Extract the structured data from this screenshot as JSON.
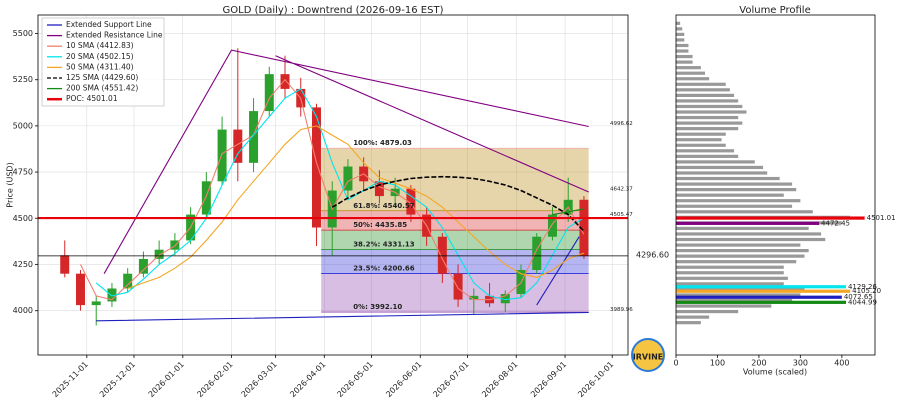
{
  "chart_data": [
    {
      "type": "candlestick",
      "title": "GOLD (Daily) : Downtrend (2026-09-16 EST)",
      "ylabel": "Price (USD)",
      "grid": true,
      "xlim": [
        "2025-10-01",
        "2026-10-11"
      ],
      "ylim": [
        3760,
        5600
      ],
      "yticks": [
        4000,
        4250,
        4500,
        4750,
        5000,
        5250,
        5500
      ],
      "xticks": [
        "2025-11-01",
        "2025-12-01",
        "2026-01-01",
        "2026-02-01",
        "2026-03-01",
        "2026-04-01",
        "2026-05-01",
        "2026-06-01",
        "2026-07-01",
        "2026-08-01",
        "2026-09-01",
        "2026-10-01"
      ],
      "up_color": "#2ca02c",
      "down_color": "#d62728",
      "x": [
        "2025-10-18",
        "2025-10-28",
        "2025-11-07",
        "2025-11-17",
        "2025-11-27",
        "2025-12-07",
        "2025-12-17",
        "2025-12-27",
        "2026-01-06",
        "2026-01-16",
        "2026-01-26",
        "2026-02-05",
        "2026-02-15",
        "2026-02-25",
        "2026-03-07",
        "2026-03-17",
        "2026-03-27",
        "2026-04-06",
        "2026-04-16",
        "2026-04-26",
        "2026-05-06",
        "2026-05-16",
        "2026-05-26",
        "2026-06-05",
        "2026-06-15",
        "2026-06-25",
        "2026-07-05",
        "2026-07-15",
        "2026-07-25",
        "2026-08-04",
        "2026-08-14",
        "2026-08-24",
        "2026-09-03",
        "2026-09-13"
      ],
      "open": [
        4300,
        4200,
        4030,
        4050,
        4120,
        4200,
        4280,
        4330,
        4380,
        4520,
        4700,
        4980,
        4800,
        5080,
        5280,
        5200,
        5100,
        4450,
        4650,
        4780,
        4700,
        4620,
        4660,
        4520,
        4400,
        4200,
        4060,
        4080,
        4040,
        4090,
        4220,
        4400,
        4520,
        4600
      ],
      "high": [
        4380,
        4220,
        4080,
        4150,
        4230,
        4320,
        4380,
        4420,
        4560,
        4750,
        5050,
        5420,
        5150,
        5320,
        5380,
        5260,
        5120,
        4700,
        4820,
        4830,
        4760,
        4720,
        4680,
        4560,
        4420,
        4250,
        4120,
        4150,
        4110,
        4250,
        4420,
        4560,
        4720,
        4620
      ],
      "low": [
        4180,
        4000,
        3920,
        4020,
        4100,
        4180,
        4250,
        4300,
        4360,
        4500,
        4680,
        4700,
        4750,
        5050,
        5150,
        5050,
        4350,
        4300,
        4600,
        4650,
        4580,
        4560,
        4480,
        4350,
        4150,
        4020,
        3980,
        4020,
        3990,
        4070,
        4200,
        4380,
        4480,
        4280
      ],
      "close": [
        4200,
        4030,
        4050,
        4120,
        4200,
        4280,
        4330,
        4380,
        4520,
        4700,
        4980,
        4800,
        5080,
        5280,
        5200,
        5100,
        4450,
        4650,
        4780,
        4700,
        4620,
        4660,
        4520,
        4400,
        4200,
        4060,
        4080,
        4040,
        4090,
        4220,
        4400,
        4520,
        4600,
        4297
      ],
      "series": [
        {
          "name": "Extended Support Line",
          "color": "#1f1fbf",
          "x": [
            "2025-11-07",
            "2026-09-16",
            "2026-09-16",
            "2026-08-14",
            "2026-09-10"
          ],
          "values": [
            3945,
            3989.96,
            null,
            4030,
            4400
          ]
        },
        {
          "name": "Extended Resistance Line",
          "color": "#800080",
          "x": [
            "2025-11-12",
            "2026-02-01",
            "2026-09-16",
            "2026-09-16",
            "2026-03-01",
            "2026-09-16"
          ],
          "values": [
            4200,
            5410,
            4996.62,
            null,
            5380,
            4642.37
          ]
        },
        {
          "name": "10 SMA (4412.83)",
          "color": "#f08070",
          "values": [
            null,
            4250,
            4080,
            4060,
            4140,
            4220,
            4300,
            4350,
            4450,
            4620,
            4850,
            4900,
            4950,
            5150,
            5250,
            5150,
            4800,
            4550,
            4700,
            4740,
            4670,
            4640,
            4580,
            4460,
            4280,
            4120,
            4060,
            4060,
            4080,
            4150,
            4330,
            4470,
            4560,
            4412.83
          ]
        },
        {
          "name": "20 SMA (4502.15)",
          "color": "#00e5ee",
          "values": [
            null,
            null,
            4150,
            4080,
            4100,
            4170,
            4250,
            4310,
            4380,
            4500,
            4680,
            4850,
            4950,
            5050,
            5150,
            5200,
            5050,
            4800,
            4600,
            4650,
            4700,
            4680,
            4620,
            4560,
            4450,
            4300,
            4150,
            4080,
            4060,
            4070,
            4150,
            4300,
            4450,
            4502.15
          ]
        },
        {
          "name": "50 SMA (4311.40)",
          "color": "#f5a623",
          "values": [
            null,
            null,
            null,
            null,
            4120,
            4150,
            4180,
            4230,
            4290,
            4380,
            4480,
            4600,
            4700,
            4800,
            4900,
            4980,
            5000,
            4950,
            4900,
            4800,
            4720,
            4690,
            4660,
            4620,
            4560,
            4480,
            4400,
            4320,
            4250,
            4200,
            4180,
            4220,
            4280,
            4311.4
          ]
        },
        {
          "name": "125 SMA (4429.60)",
          "color": "#000000",
          "dash": true,
          "values": [
            null,
            null,
            null,
            null,
            null,
            null,
            null,
            null,
            null,
            null,
            null,
            null,
            null,
            null,
            null,
            null,
            null,
            4560,
            4610,
            4650,
            4680,
            4700,
            4715,
            4722,
            4725,
            4722,
            4715,
            4700,
            4680,
            4650,
            4610,
            4570,
            4520,
            4429.6
          ]
        },
        {
          "name": "200 SMA (4551.42)",
          "color": "#138a13",
          "values": [
            null,
            null,
            null,
            null,
            null,
            null,
            null,
            null,
            null,
            null,
            null,
            null,
            null,
            null,
            null,
            null,
            null,
            null,
            null,
            null,
            null,
            null,
            null,
            null,
            null,
            null,
            null,
            null,
            null,
            null,
            null,
            4520,
            4535,
            4551.42
          ]
        },
        {
          "name": "POC: 4501.01",
          "color": "#e8000b",
          "hline": 4501.01
        }
      ],
      "fib": {
        "start": "2026-03-30",
        "end": "2026-09-16",
        "levels": [
          {
            "value": 3992.1,
            "label": "0%: 3992.10",
            "color": "#8e44ad"
          },
          {
            "value": 4200.66,
            "label": "23.5%: 4200.66",
            "color": "#2b2bd9"
          },
          {
            "value": 4331.13,
            "label": "38.2%: 4331.13",
            "color": "#1a8a1a"
          },
          {
            "value": 4435.85,
            "label": "50%: 4435.85",
            "color": "#d62728"
          },
          {
            "value": 4540.57,
            "label": "61.8%: 4540.57",
            "color": "#b8860b"
          },
          {
            "value": 4879.03,
            "label": "100%: 4879.03",
            "color": "#f4a6a6"
          }
        ]
      },
      "end_labels": [
        {
          "value": 4996.62,
          "color": "#800080"
        },
        {
          "value": 4642.37,
          "color": "#800080"
        },
        {
          "value": 4505.47,
          "color": "#138a13"
        },
        {
          "value": 3989.96,
          "color": "#1f1fbf"
        }
      ],
      "price_line": {
        "value": 4296.6,
        "label": "4296.60"
      },
      "watermark": "IRVINE"
    },
    {
      "type": "barh",
      "title": "Volume Profile",
      "xlabel": "Volume (scaled)",
      "xlim": [
        0,
        480
      ],
      "xticks": [
        0,
        100,
        200,
        300,
        400
      ],
      "color": "#999999",
      "prices": [
        3935,
        3965,
        3995,
        4025,
        4055,
        4085,
        4115,
        4145,
        4175,
        4205,
        4235,
        4265,
        4295,
        4325,
        4355,
        4385,
        4415,
        4445,
        4475,
        4505,
        4535,
        4565,
        4595,
        4625,
        4655,
        4685,
        4715,
        4745,
        4775,
        4805,
        4835,
        4865,
        4895,
        4925,
        4955,
        4985,
        5015,
        5045,
        5075,
        5105,
        5135,
        5165,
        5195,
        5225,
        5255,
        5285,
        5315,
        5345,
        5375,
        5405,
        5435,
        5465,
        5495,
        5525,
        5555
      ],
      "values": [
        60,
        80,
        150,
        230,
        280,
        300,
        310,
        260,
        270,
        260,
        260,
        290,
        310,
        320,
        300,
        360,
        350,
        320,
        400,
        420,
        330,
        280,
        300,
        260,
        290,
        280,
        250,
        220,
        210,
        190,
        150,
        140,
        120,
        110,
        120,
        150,
        160,
        150,
        170,
        160,
        150,
        140,
        130,
        120,
        80,
        70,
        60,
        40,
        40,
        30,
        30,
        20,
        20,
        15,
        10
      ],
      "highlights": [
        {
          "price": 4501.01,
          "label": "4501.01",
          "volume": 455,
          "color": "#e8000b"
        },
        {
          "price": 4472.45,
          "label": "4472.45",
          "volume": 345,
          "color": "#800080"
        },
        {
          "price": 4129.26,
          "label": "4129.26",
          "volume": 410,
          "color": "#00e5ee"
        },
        {
          "price": 4105.2,
          "label": "4105.20",
          "volume": 420,
          "color": "#f5a623"
        },
        {
          "price": 4072.65,
          "label": "4072.65",
          "volume": 400,
          "color": "#1f1fbf"
        },
        {
          "price": 4044.99,
          "label": "4044.99",
          "volume": 410,
          "color": "#138a13"
        }
      ]
    }
  ]
}
